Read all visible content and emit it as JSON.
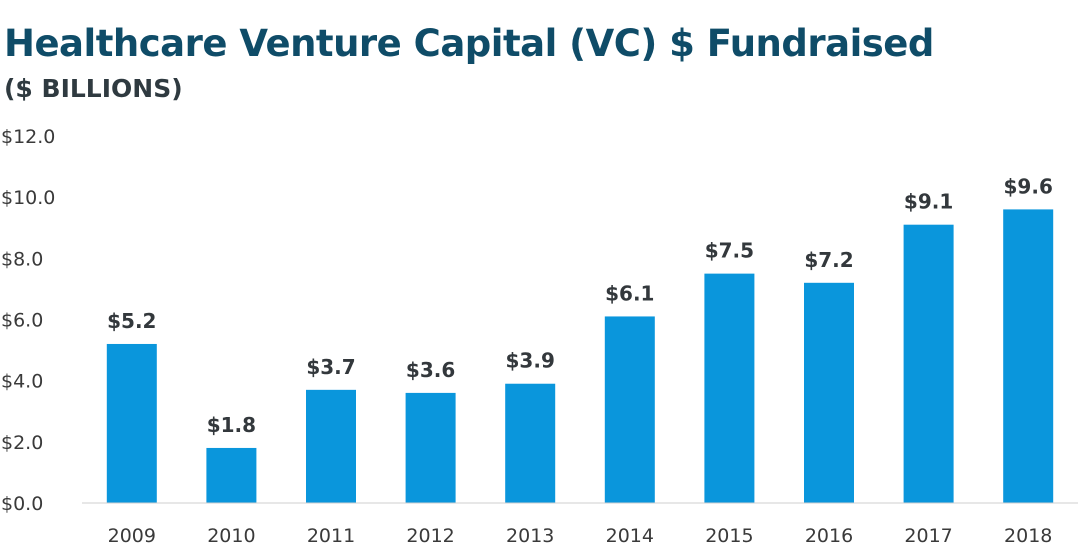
{
  "chart_data": {
    "type": "bar",
    "title": "Healthcare Venture Capital (VC) $ Fundraised",
    "subtitle": "($ BILLIONS)",
    "categories": [
      "2009",
      "2010",
      "2011",
      "2012",
      "2013",
      "2014",
      "2015",
      "2016",
      "2017",
      "2018"
    ],
    "values": [
      5.2,
      1.8,
      3.7,
      3.6,
      3.9,
      6.1,
      7.5,
      7.2,
      9.1,
      9.6
    ],
    "data_labels": [
      "$5.2",
      "$1.8",
      "$3.7",
      "$3.6",
      "$3.9",
      "$6.1",
      "$7.5",
      "$7.2",
      "$9.1",
      "$9.6"
    ],
    "ylim": [
      0,
      12
    ],
    "yticks": [
      0,
      2,
      4,
      6,
      8,
      10,
      12
    ],
    "ytick_labels": [
      "$0.0",
      "$2.0",
      "$4.0",
      "$6.0",
      "$8.0",
      "$10.0",
      "$12.0"
    ],
    "xlabel": "",
    "ylabel": "",
    "grid": false,
    "bar_color": "#0a96dc",
    "title_color": "#0f4c68"
  }
}
